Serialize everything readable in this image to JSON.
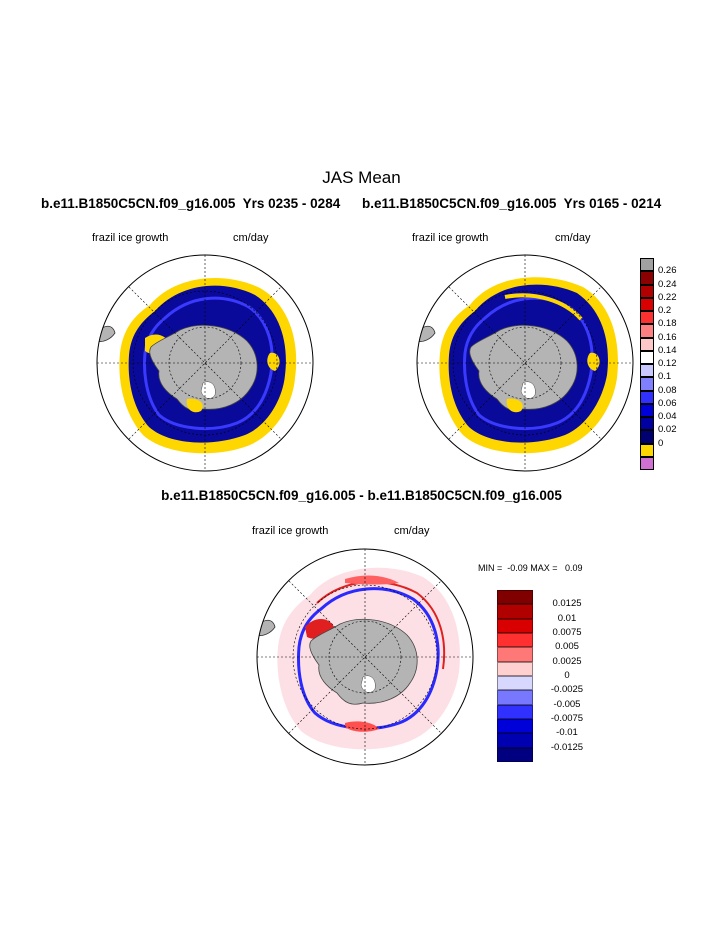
{
  "title": "JAS Mean",
  "top_left": {
    "case_label": "b.e11.B1850C5CN.f09_g16.005  Yrs 0235 - 0284",
    "variable": "frazil ice growth",
    "units": "cm/day"
  },
  "top_right": {
    "case_label": "b.e11.B1850C5CN.f09_g16.005  Yrs 0165 - 0214",
    "variable": "frazil ice growth",
    "units": "cm/day"
  },
  "top_colorbar": {
    "labels": [
      "0.26",
      "0.24",
      "0.22",
      "0.2",
      "0.18",
      "0.16",
      "0.14",
      "0.12",
      "0.1",
      "0.08",
      "0.06",
      "0.04",
      "0.02",
      "0"
    ],
    "colors": [
      "#a0a0a0",
      "#8b0000",
      "#b20000",
      "#d80000",
      "#ff3030",
      "#ff8080",
      "#ffc8c8",
      "#ffffff",
      "#c8c8ff",
      "#8080ff",
      "#3030ff",
      "#0000d8",
      "#0000a0",
      "#000070",
      "#ffd700",
      "#d070d0"
    ]
  },
  "diff": {
    "case_label": "b.e11.B1850C5CN.f09_g16.005 - b.e11.B1850C5CN.f09_g16.005",
    "variable": "frazil ice growth",
    "units": "cm/day",
    "min_max": "MIN =  -0.09 MAX =   0.09"
  },
  "diff_colorbar": {
    "labels": [
      "0.0125",
      "0.01",
      "0.0075",
      "0.005",
      "0.0025",
      "0",
      "-0.0025",
      "-0.005",
      "-0.0075",
      "-0.01",
      "-0.0125"
    ],
    "colors": [
      "#800000",
      "#b00000",
      "#d80000",
      "#ff3030",
      "#ff7878",
      "#ffd0d0",
      "#d8d8ff",
      "#7878ff",
      "#3030ff",
      "#0000d8",
      "#0000b0",
      "#000080"
    ]
  }
}
